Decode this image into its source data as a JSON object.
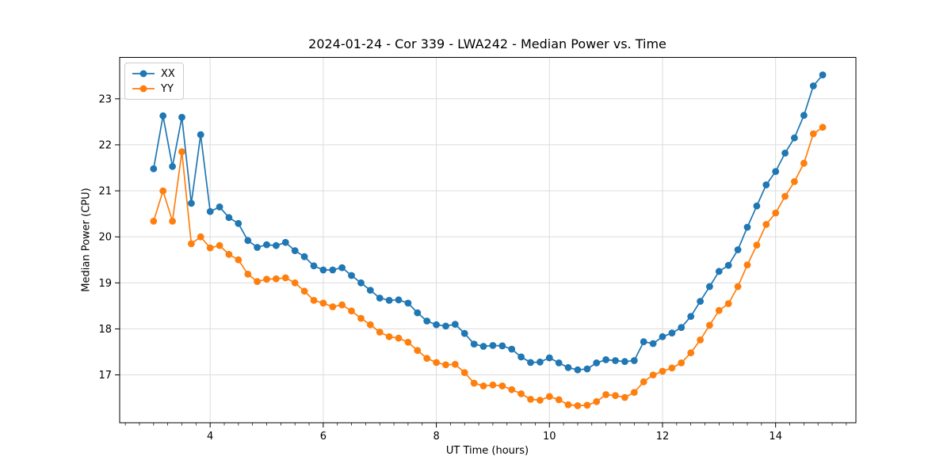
{
  "figure": {
    "background": "#ffffff",
    "text_color": "#000000",
    "spine_color": "#000000"
  },
  "chart_data": {
    "type": "line",
    "title": "2024-01-24 - Cor 339 - LWA242 - Median Power vs. Time",
    "xlabel": "UT Time (hours)",
    "ylabel": "Median Power (CPU)",
    "xlim": [
      2.4,
      15.42
    ],
    "ylim": [
      15.96,
      23.9
    ],
    "xticks": [
      4,
      6,
      8,
      10,
      12,
      14
    ],
    "yticks": [
      17,
      18,
      19,
      20,
      21,
      22,
      23
    ],
    "x_minor_step": 0.25,
    "grid": true,
    "grid_color": "#dcdcdc",
    "legend": {
      "position": "upper left",
      "labels": [
        "XX",
        "YY"
      ]
    },
    "x": [
      3.0,
      3.167,
      3.333,
      3.5,
      3.667,
      3.833,
      4.0,
      4.167,
      4.333,
      4.5,
      4.667,
      4.833,
      5.0,
      5.167,
      5.333,
      5.5,
      5.667,
      5.833,
      6.0,
      6.167,
      6.333,
      6.5,
      6.667,
      6.833,
      7.0,
      7.167,
      7.333,
      7.5,
      7.667,
      7.833,
      8.0,
      8.167,
      8.333,
      8.5,
      8.667,
      8.833,
      9.0,
      9.167,
      9.333,
      9.5,
      9.667,
      9.833,
      10.0,
      10.167,
      10.333,
      10.5,
      10.667,
      10.833,
      11.0,
      11.167,
      11.333,
      11.5,
      11.667,
      11.833,
      12.0,
      12.167,
      12.333,
      12.5,
      12.667,
      12.833,
      13.0,
      13.167,
      13.333,
      13.5,
      13.667,
      13.833,
      14.0,
      14.167,
      14.333,
      14.5,
      14.667,
      14.833
    ],
    "series": [
      {
        "name": "XX",
        "color": "#1f77b4",
        "marker": "circle",
        "values": [
          21.48,
          22.63,
          21.53,
          22.6,
          20.73,
          22.22,
          20.55,
          20.65,
          20.42,
          20.29,
          19.92,
          19.77,
          19.83,
          19.81,
          19.88,
          19.7,
          19.57,
          19.37,
          19.28,
          19.28,
          19.33,
          19.16,
          19.0,
          18.84,
          18.67,
          18.62,
          18.63,
          18.56,
          18.35,
          18.17,
          18.09,
          18.06,
          18.1,
          17.9,
          17.67,
          17.62,
          17.64,
          17.63,
          17.56,
          17.39,
          17.27,
          17.28,
          17.37,
          17.26,
          17.16,
          17.11,
          17.13,
          17.26,
          17.33,
          17.31,
          17.29,
          17.31,
          17.72,
          17.68,
          17.83,
          17.91,
          18.03,
          18.27,
          18.6,
          18.92,
          19.25,
          19.38,
          19.72,
          20.21,
          20.67,
          21.13,
          21.42,
          21.82,
          22.15,
          22.64,
          23.28,
          23.52
        ]
      },
      {
        "name": "YY",
        "color": "#ff7f0e",
        "marker": "circle",
        "values": [
          20.34,
          21.0,
          20.34,
          21.85,
          19.85,
          20.0,
          19.76,
          19.81,
          19.62,
          19.5,
          19.19,
          19.03,
          19.08,
          19.09,
          19.11,
          19.0,
          18.82,
          18.62,
          18.56,
          18.48,
          18.52,
          18.39,
          18.23,
          18.09,
          17.93,
          17.83,
          17.8,
          17.71,
          17.53,
          17.36,
          17.27,
          17.22,
          17.23,
          17.05,
          16.82,
          16.76,
          16.78,
          16.76,
          16.68,
          16.59,
          16.47,
          16.45,
          16.53,
          16.46,
          16.35,
          16.33,
          16.34,
          16.42,
          16.57,
          16.55,
          16.51,
          16.62,
          16.85,
          17.0,
          17.08,
          17.15,
          17.26,
          17.48,
          17.76,
          18.08,
          18.4,
          18.55,
          18.92,
          19.39,
          19.82,
          20.27,
          20.52,
          20.88,
          21.2,
          21.6,
          22.24,
          22.38
        ]
      }
    ]
  }
}
